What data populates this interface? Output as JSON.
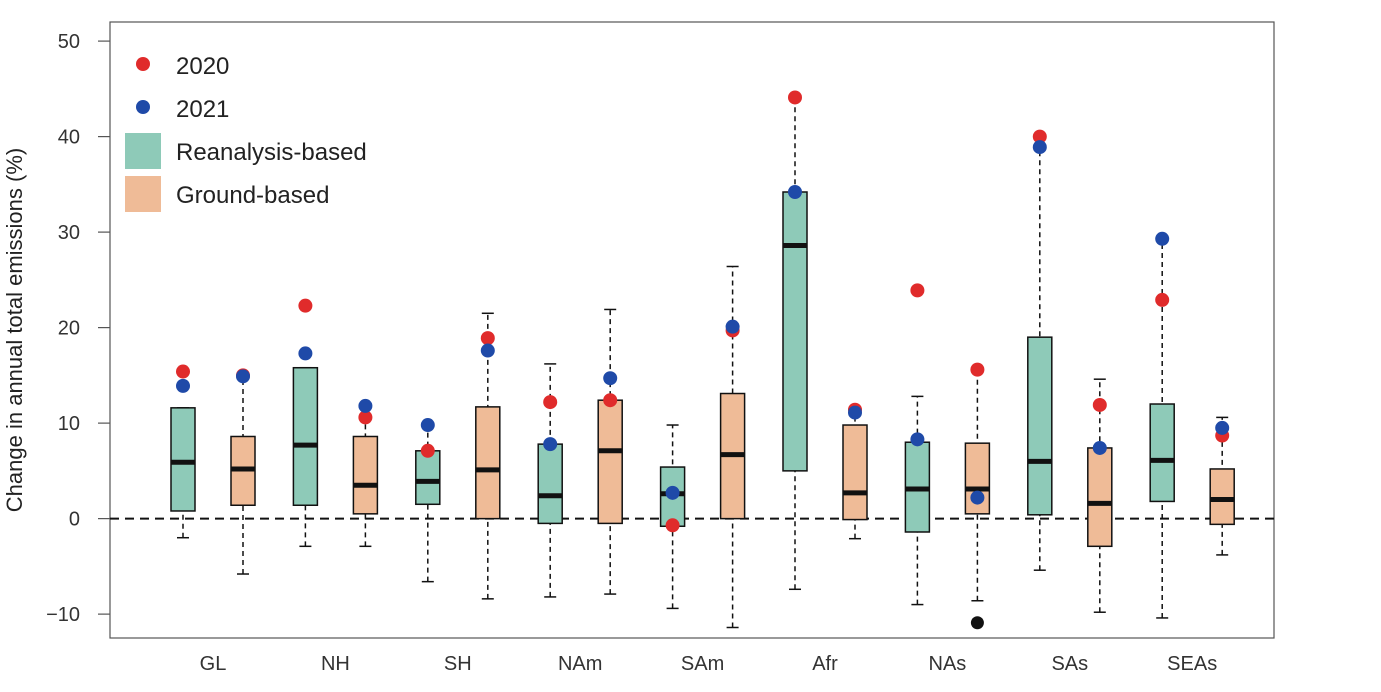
{
  "chart_data": {
    "type": "box",
    "ylabel": "Change in annual total emissions (%)",
    "ylim": [
      -12.5,
      52
    ],
    "yticks": [
      -10,
      0,
      10,
      20,
      30,
      40,
      50
    ],
    "categories": [
      "GL",
      "NH",
      "SH",
      "NAm",
      "SAm",
      "Afr",
      "NAs",
      "SAs",
      "SEAs"
    ],
    "zero_reference_line": 0,
    "legend": {
      "placement": "top-left",
      "entries": [
        {
          "label": "2020",
          "kind": "point",
          "color": "#e02b2b"
        },
        {
          "label": "2021",
          "kind": "point",
          "color": "#1f4aa8"
        },
        {
          "label": "Reanalysis-based",
          "kind": "box",
          "color": "#8ecab8"
        },
        {
          "label": "Ground-based",
          "kind": "box",
          "color": "#efbb97"
        }
      ]
    },
    "colors": {
      "reanalysis": "#8ecab8",
      "ground": "#efbb97",
      "p2020": "#e02b2b",
      "p2021": "#1f4aa8",
      "outlier": "#111111"
    },
    "boxes": [
      {
        "category": "GL",
        "type": "reanalysis",
        "whisker_low": -2.0,
        "q1": 0.8,
        "median": 5.9,
        "q3": 11.6,
        "whisker_high": 11.6,
        "p2020": 15.4,
        "p2021": 13.9
      },
      {
        "category": "GL",
        "type": "ground",
        "whisker_low": -5.8,
        "q1": 1.4,
        "median": 5.2,
        "q3": 8.6,
        "whisker_high": 15.0,
        "p2020": 15.0,
        "p2021": 14.9
      },
      {
        "category": "NH",
        "type": "reanalysis",
        "whisker_low": -2.9,
        "q1": 1.4,
        "median": 7.7,
        "q3": 15.8,
        "whisker_high": 15.8,
        "p2020": 22.3,
        "p2021": 17.3
      },
      {
        "category": "NH",
        "type": "ground",
        "whisker_low": -2.9,
        "q1": 0.5,
        "median": 3.5,
        "q3": 8.6,
        "whisker_high": 11.8,
        "p2020": 10.6,
        "p2021": 11.8
      },
      {
        "category": "SH",
        "type": "reanalysis",
        "whisker_low": -6.6,
        "q1": 1.5,
        "median": 3.9,
        "q3": 7.1,
        "whisker_high": 9.8,
        "p2020": 7.1,
        "p2021": 9.8
      },
      {
        "category": "SH",
        "type": "ground",
        "whisker_low": -8.4,
        "q1": 0.0,
        "median": 5.1,
        "q3": 11.7,
        "whisker_high": 21.5,
        "p2020": 18.9,
        "p2021": 17.6
      },
      {
        "category": "NAm",
        "type": "reanalysis",
        "whisker_low": -8.2,
        "q1": -0.5,
        "median": 2.4,
        "q3": 7.8,
        "whisker_high": 16.2,
        "p2020": 12.2,
        "p2021": 7.8
      },
      {
        "category": "NAm",
        "type": "ground",
        "whisker_low": -7.9,
        "q1": -0.5,
        "median": 7.1,
        "q3": 12.4,
        "whisker_high": 21.9,
        "p2020": 12.4,
        "p2021": 14.7
      },
      {
        "category": "SAm",
        "type": "reanalysis",
        "whisker_low": -9.4,
        "q1": -0.8,
        "median": 2.6,
        "q3": 5.4,
        "whisker_high": 9.8,
        "p2020": -0.7,
        "p2021": 2.7
      },
      {
        "category": "SAm",
        "type": "ground",
        "whisker_low": -11.4,
        "q1": 0.0,
        "median": 6.7,
        "q3": 13.1,
        "whisker_high": 26.4,
        "p2020": 19.7,
        "p2021": 20.1
      },
      {
        "category": "Afr",
        "type": "reanalysis",
        "whisker_low": -7.4,
        "q1": 5.0,
        "median": 28.6,
        "q3": 34.2,
        "whisker_high": 44.0,
        "p2020": 44.1,
        "p2021": 34.2
      },
      {
        "category": "Afr",
        "type": "ground",
        "whisker_low": -2.1,
        "q1": -0.1,
        "median": 2.7,
        "q3": 9.8,
        "whisker_high": 11.4,
        "p2020": 11.4,
        "p2021": 11.1
      },
      {
        "category": "NAs",
        "type": "reanalysis",
        "whisker_low": -9.0,
        "q1": -1.4,
        "median": 3.1,
        "q3": 8.0,
        "whisker_high": 12.8,
        "p2020": 23.9,
        "p2021": 8.3
      },
      {
        "category": "NAs",
        "type": "ground",
        "whisker_low": -8.6,
        "q1": 0.5,
        "median": 3.1,
        "q3": 7.9,
        "whisker_high": 15.6,
        "p2020": 15.6,
        "p2021": 2.2,
        "outliers": [
          -10.9
        ]
      },
      {
        "category": "SAs",
        "type": "reanalysis",
        "whisker_low": -5.4,
        "q1": 0.4,
        "median": 6.0,
        "q3": 19.0,
        "whisker_high": 40.0,
        "p2020": 40.0,
        "p2021": 38.9
      },
      {
        "category": "SAs",
        "type": "ground",
        "whisker_low": -9.8,
        "q1": -2.9,
        "median": 1.6,
        "q3": 7.4,
        "whisker_high": 14.6,
        "p2020": 11.9,
        "p2021": 7.4
      },
      {
        "category": "SEAs",
        "type": "reanalysis",
        "whisker_low": -10.4,
        "q1": 1.8,
        "median": 6.1,
        "q3": 12.0,
        "whisker_high": 29.3,
        "p2020": 22.9,
        "p2021": 29.3
      },
      {
        "category": "SEAs",
        "type": "ground",
        "whisker_low": -3.8,
        "q1": -0.6,
        "median": 2.0,
        "q3": 5.2,
        "whisker_high": 10.6,
        "p2020": 8.7,
        "p2021": 9.5
      }
    ]
  }
}
